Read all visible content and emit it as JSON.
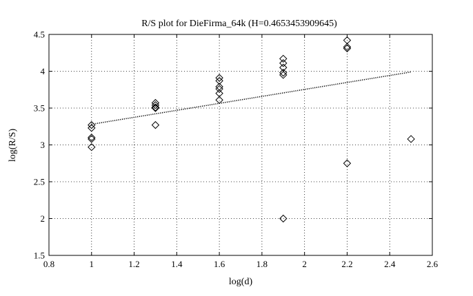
{
  "chart_data": {
    "type": "scatter",
    "title": "R/S plot for DieFirma_64k (H=0.4653453909645)",
    "xlabel": "log(d)",
    "ylabel": "log(R/S)",
    "xlim": [
      0.8,
      2.6
    ],
    "ylim": [
      1.5,
      4.5
    ],
    "xticks": [
      0.8,
      1,
      1.2,
      1.4,
      1.6,
      1.8,
      2,
      2.2,
      2.4,
      2.6
    ],
    "xtick_labels": [
      "0.8",
      "1",
      "1.2",
      "1.4",
      "1.6",
      "1.8",
      "2",
      "2.2",
      "2.4",
      "2.6"
    ],
    "yticks": [
      1.5,
      2,
      2.5,
      3,
      3.5,
      4,
      4.5
    ],
    "ytick_labels": [
      "1.5",
      "2",
      "2.5",
      "3",
      "3.5",
      "4",
      "4.5"
    ],
    "grid": true,
    "marker": "diamond",
    "points": [
      {
        "x": 1.0,
        "y": 3.27
      },
      {
        "x": 1.0,
        "y": 3.23
      },
      {
        "x": 1.0,
        "y": 3.1
      },
      {
        "x": 1.0,
        "y": 3.08
      },
      {
        "x": 1.0,
        "y": 2.97
      },
      {
        "x": 1.3,
        "y": 3.57
      },
      {
        "x": 1.3,
        "y": 3.54
      },
      {
        "x": 1.3,
        "y": 3.51
      },
      {
        "x": 1.3,
        "y": 3.5
      },
      {
        "x": 1.3,
        "y": 3.27
      },
      {
        "x": 1.6,
        "y": 3.91
      },
      {
        "x": 1.6,
        "y": 3.87
      },
      {
        "x": 1.6,
        "y": 3.79
      },
      {
        "x": 1.6,
        "y": 3.76
      },
      {
        "x": 1.6,
        "y": 3.7
      },
      {
        "x": 1.6,
        "y": 3.61
      },
      {
        "x": 1.9,
        "y": 4.17
      },
      {
        "x": 1.9,
        "y": 4.11
      },
      {
        "x": 1.9,
        "y": 4.05
      },
      {
        "x": 1.9,
        "y": 3.98
      },
      {
        "x": 1.9,
        "y": 3.95
      },
      {
        "x": 1.9,
        "y": 2.0
      },
      {
        "x": 2.2,
        "y": 4.42
      },
      {
        "x": 2.2,
        "y": 4.33
      },
      {
        "x": 2.2,
        "y": 4.31
      },
      {
        "x": 2.2,
        "y": 2.75
      },
      {
        "x": 2.5,
        "y": 3.08
      }
    ],
    "fit_line": {
      "style": "dotted",
      "x": [
        1.0,
        2.5
      ],
      "y": [
        3.28,
        3.99
      ]
    }
  }
}
